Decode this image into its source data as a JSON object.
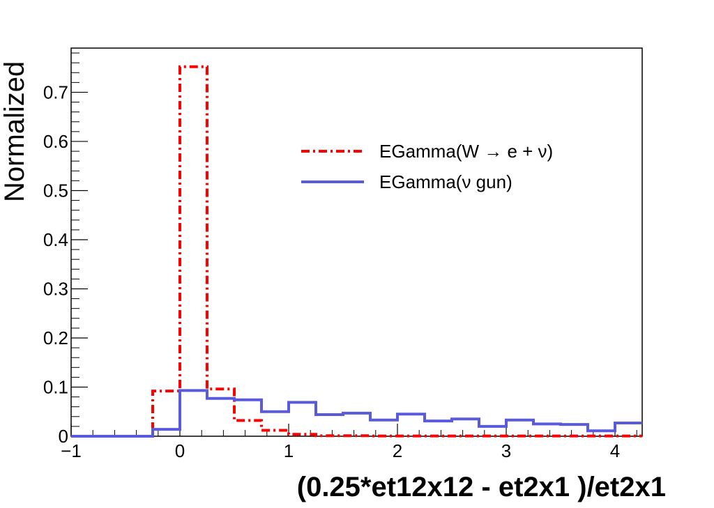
{
  "chart_data": {
    "type": "line",
    "style": "step-histogram",
    "xlabel": "(0.25*et12x12 - et2x1 )/et2x1",
    "ylabel": "Normalized",
    "xlim": [
      -1,
      4.25
    ],
    "ylim": [
      0,
      0.79
    ],
    "x_ticks": [
      -1,
      0,
      1,
      2,
      3,
      4
    ],
    "x_tick_labels": [
      "−1",
      "0",
      "1",
      "2",
      "3",
      "4"
    ],
    "y_ticks": [
      0,
      0.1,
      0.2,
      0.3,
      0.4,
      0.5,
      0.6,
      0.7
    ],
    "y_tick_labels": [
      "0",
      "0.1",
      "0.2",
      "0.3",
      "0.4",
      "0.5",
      "0.6",
      "0.7"
    ],
    "grid": false,
    "legend_position": "upper-right",
    "bin_edges": [
      -1,
      -0.75,
      -0.5,
      -0.25,
      0,
      0.25,
      0.5,
      0.75,
      1,
      1.25,
      1.5,
      1.75,
      2,
      2.25,
      2.5,
      2.75,
      3,
      3.25,
      3.5,
      3.75,
      4,
      4.25
    ],
    "series": [
      {
        "name": "EGamma(W → e + ν)",
        "color": "#ff0000",
        "line_style": "dash-dot",
        "values": [
          0,
          0,
          0,
          0.092,
          0.752,
          0.096,
          0.032,
          0.012,
          0.004,
          0.001,
          0.001,
          0.0005,
          0.0005,
          0.0005,
          0.0005,
          0.0005,
          0.0005,
          0.0005,
          0.0005,
          0.0005,
          0.0005
        ]
      },
      {
        "name": "EGamma(ν gun)",
        "color": "#5a5adc",
        "line_style": "solid",
        "values": [
          0,
          0,
          0,
          0.014,
          0.093,
          0.077,
          0.074,
          0.05,
          0.069,
          0.044,
          0.047,
          0.033,
          0.045,
          0.031,
          0.035,
          0.02,
          0.033,
          0.025,
          0.024,
          0.011,
          0.027
        ]
      }
    ]
  }
}
